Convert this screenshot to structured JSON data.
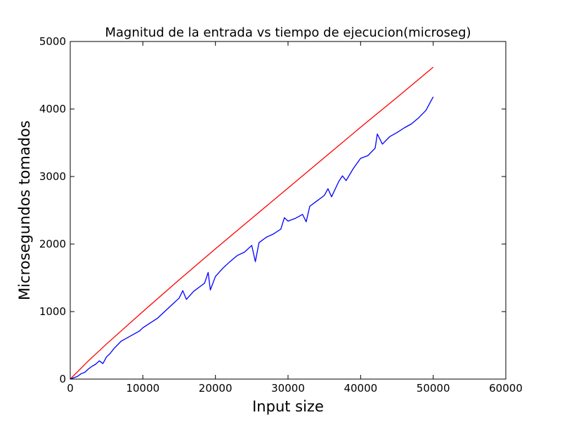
{
  "chart_data": {
    "type": "line",
    "title": "Magnitud de la entrada vs tiempo de ejecucion(microseg)",
    "xlabel": "Input size",
    "ylabel": "Microsegundos tomados",
    "xlim": [
      0,
      60000
    ],
    "ylim": [
      0,
      5000
    ],
    "xticks": [
      0,
      10000,
      20000,
      30000,
      40000,
      50000,
      60000
    ],
    "yticks": [
      0,
      1000,
      2000,
      3000,
      4000,
      5000
    ],
    "grid": false,
    "legend": "none",
    "series": [
      {
        "color": "#ff0000",
        "style": "smooth",
        "x": [
          0,
          2500,
          5000,
          10000,
          15000,
          20000,
          25000,
          30000,
          35000,
          40000,
          45000,
          50000
        ],
        "y": [
          0,
          270,
          520,
          1000,
          1470,
          1930,
          2380,
          2830,
          3280,
          3730,
          4170,
          4620
        ]
      },
      {
        "color": "#0000ff",
        "style": "noisy",
        "x": [
          0,
          500,
          1000,
          1500,
          2000,
          2500,
          3000,
          3500,
          4000,
          4500,
          5000,
          5500,
          6000,
          7000,
          8000,
          9000,
          9500,
          10000,
          11000,
          12000,
          13000,
          14000,
          15000,
          15500,
          16000,
          17000,
          18000,
          18500,
          19000,
          19300,
          20000,
          21000,
          22000,
          23000,
          24000,
          25000,
          25500,
          26000,
          27000,
          28000,
          29000,
          29500,
          30000,
          31000,
          32000,
          32500,
          33000,
          34000,
          35000,
          35500,
          36000,
          37000,
          37500,
          38000,
          39000,
          40000,
          41000,
          42000,
          42300,
          43000,
          44000,
          45000,
          46000,
          47000,
          48000,
          49000,
          50000
        ],
        "y": [
          0,
          20,
          40,
          80,
          100,
          150,
          190,
          220,
          270,
          230,
          330,
          380,
          450,
          560,
          620,
          680,
          710,
          760,
          830,
          900,
          1000,
          1100,
          1200,
          1310,
          1180,
          1300,
          1380,
          1420,
          1580,
          1320,
          1520,
          1640,
          1740,
          1830,
          1880,
          1980,
          1740,
          2020,
          2100,
          2150,
          2220,
          2390,
          2340,
          2380,
          2440,
          2330,
          2560,
          2640,
          2720,
          2820,
          2700,
          2930,
          3010,
          2940,
          3120,
          3270,
          3310,
          3420,
          3630,
          3480,
          3590,
          3650,
          3720,
          3780,
          3870,
          3980,
          4180
        ]
      }
    ]
  }
}
